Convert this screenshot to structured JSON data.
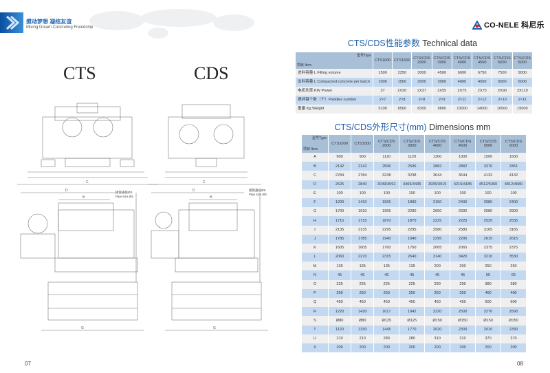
{
  "header": {
    "slogan_cn": "搅动梦想 凝结友谊",
    "slogan_en": "Mixing Dream Concreting Friendship",
    "logo_text": "CO-NELE 科尼乐",
    "brand_color": "#1b5ea9"
  },
  "drawings": {
    "cts_title": "CTS",
    "cds_title": "CDS",
    "pipe_label_cn": "接管通径ØS",
    "pipe_label_en": "Pipe size ØS",
    "dim_letters": [
      "A",
      "B",
      "C",
      "D",
      "E",
      "F",
      "G",
      "H",
      "I",
      "J",
      "K",
      "L",
      "M",
      "N",
      "O",
      "P",
      "Q",
      "R",
      "S",
      "T",
      "U",
      "X"
    ]
  },
  "technical": {
    "title_cn": "CTS/CDS性能参数",
    "title_en": "Technical data",
    "corner_type": "型号Type",
    "corner_item": "项目 Item",
    "columns": [
      "CTS1000",
      "CTS1500",
      "CTS/CDS 2000",
      "CTS/CDS 3000",
      "CTS/CDS 4000",
      "CTS/CDS 4500",
      "CTS/CDS 5000",
      "CTS/CDS 6000"
    ],
    "rows": [
      {
        "label": "进料容量 L Filling volume",
        "values": [
          "1500",
          "2250",
          "3000",
          "4500",
          "6000",
          "6750",
          "7500",
          "9000"
        ]
      },
      {
        "label": "出料容量 L Compacted concrete per batch",
        "values": [
          "1000",
          "1500",
          "2000",
          "3000",
          "4000",
          "4500",
          "5000",
          "6000"
        ]
      },
      {
        "label": "电机功率 KW Power",
        "values": [
          "37",
          "2X30",
          "2X37",
          "2X55",
          "2X75",
          "2X75",
          "2X90",
          "2X110"
        ]
      },
      {
        "label": "搅拌臂个数（个）Paddles number",
        "values": [
          "2×7",
          "2×8",
          "2×8",
          "2×9",
          "2×11",
          "2×12",
          "2×10",
          "2×11"
        ]
      },
      {
        "label": "重量 Kg Weight",
        "values": [
          "5100",
          "6500",
          "8300",
          "9800",
          "13000",
          "14500",
          "16500",
          "19500"
        ]
      }
    ]
  },
  "dimensions": {
    "title_cn": "CTS/CDS外形尺寸(mm)",
    "title_en": "Dimensions mm",
    "corner_type": "型号Type",
    "corner_item": "项目 Item",
    "columns": [
      "CTS1000",
      "CTS1500",
      "CTS/CDS 2000",
      "CTS/CDS 3000",
      "CTS/CDS 4000",
      "CTS/CDS 4500",
      "CTS/CDS 5000",
      "CTS/CDS 6000"
    ],
    "rows": [
      {
        "label": "A",
        "values": [
          "900",
          "900",
          "1120",
          "1120",
          "1300",
          "1300",
          "1500",
          "1500"
        ]
      },
      {
        "label": "B",
        "values": [
          "2142",
          "2142",
          "2596",
          "2596",
          "2882",
          "2882",
          "3370",
          "3361"
        ]
      },
      {
        "label": "C",
        "values": [
          "2784",
          "2784",
          "3238",
          "3238",
          "3644",
          "3644",
          "4132",
          "4132"
        ]
      },
      {
        "label": "D",
        "values": [
          "2625",
          "2840",
          "3049/3092",
          "3465/3435",
          "3935/3915",
          "4215/4185",
          "4512/4360",
          "4812/4680"
        ]
      },
      {
        "label": "E",
        "values": [
          "100",
          "100",
          "100",
          "100",
          "100",
          "100",
          "100",
          "100"
        ]
      },
      {
        "label": "F",
        "values": [
          "1200",
          "1410",
          "1565",
          "1890",
          "2150",
          "2430",
          "2080",
          "2400"
        ]
      },
      {
        "label": "G",
        "values": [
          "1700",
          "1910",
          "1955",
          "2280",
          "2650",
          "2930",
          "2580",
          "2900"
        ]
      },
      {
        "label": "H",
        "values": [
          "1715",
          "1715",
          "1870",
          "1870",
          "2225",
          "2225",
          "2535",
          "2535"
        ]
      },
      {
        "label": "I",
        "values": [
          "2135",
          "2135",
          "2295",
          "2295",
          "2580",
          "2580",
          "3165",
          "3165"
        ]
      },
      {
        "label": "J",
        "values": [
          "1785",
          "1785",
          "1940",
          "1940",
          "2295",
          "2295",
          "2615",
          "2615"
        ]
      },
      {
        "label": "K",
        "values": [
          "1605",
          "1605",
          "1760",
          "1760",
          "2065",
          "2065",
          "2375",
          "2375"
        ]
      },
      {
        "label": "L",
        "values": [
          "2060",
          "2270",
          "2315",
          "2640",
          "3140",
          "3420",
          "3210",
          "3530"
        ]
      },
      {
        "label": "M",
        "values": [
          "135",
          "135",
          "135",
          "135",
          "200",
          "200",
          "250",
          "250"
        ]
      },
      {
        "label": "N",
        "values": [
          "45",
          "45",
          "45",
          "45",
          "45",
          "45",
          "65",
          "65"
        ]
      },
      {
        "label": "O",
        "values": [
          "225",
          "225",
          "225",
          "225",
          "290",
          "290",
          "380",
          "380"
        ]
      },
      {
        "label": "P",
        "values": [
          "250",
          "250",
          "250",
          "250",
          "250",
          "250",
          "400",
          "400"
        ]
      },
      {
        "label": "Q",
        "values": [
          "450",
          "450",
          "450",
          "450",
          "450",
          "450",
          "600",
          "600"
        ]
      },
      {
        "label": "R",
        "values": [
          "1220",
          "1430",
          "1617",
          "1942",
          "2220",
          "2500",
          "2270",
          "2590"
        ]
      },
      {
        "label": "S",
        "values": [
          "Ø80",
          "Ø80",
          "Ø125",
          "Ø125",
          "Ø150",
          "Ø150",
          "Ø150",
          "Ø150"
        ]
      },
      {
        "label": "T",
        "values": [
          "1120",
          "1330",
          "1445",
          "1770",
          "2020",
          "2300",
          "2010",
          "2330"
        ]
      },
      {
        "label": "U",
        "values": [
          "210",
          "210",
          "280",
          "280",
          "310",
          "310",
          "370",
          "370"
        ]
      },
      {
        "label": "X",
        "values": [
          "200",
          "200",
          "200",
          "200",
          "200",
          "200",
          "200",
          "200"
        ]
      }
    ]
  },
  "footer": {
    "page_left": "07",
    "page_right": "08"
  }
}
